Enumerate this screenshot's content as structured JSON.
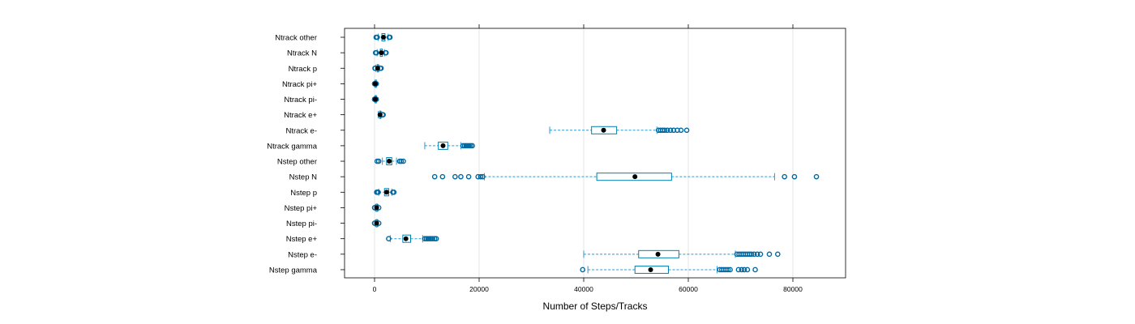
{
  "chart_data": {
    "type": "boxplot",
    "title": "",
    "xlabel": "Number of Steps/Tracks",
    "ylabel": "",
    "xlim": [
      -5500,
      90000
    ],
    "x_ticks": [
      0,
      20000,
      40000,
      60000,
      80000
    ],
    "x_tick_labels": [
      "0",
      "20000",
      "40000",
      "60000",
      "80000"
    ],
    "grid": "vertical",
    "colors": {
      "box": "#0080b0",
      "whisker": "#2a9ad4",
      "outlier": "#0068a0",
      "median": "#000000",
      "grid": "#e6e6e6"
    },
    "categories": [
      "Ntrack other",
      "Ntrack N",
      "Ntrack p",
      "Ntrack pi+",
      "Ntrack pi-",
      "Ntrack e+",
      "Ntrack e-",
      "Ntrack gamma",
      "Nstep other",
      "Nstep N",
      "Nstep p",
      "Nstep pi+",
      "Nstep pi-",
      "Nstep e+",
      "Nstep e-",
      "Nstep gamma"
    ],
    "boxes": [
      {
        "name": "Ntrack other",
        "whisker_low": 700,
        "q1": 1400,
        "median": 1700,
        "q3": 2000,
        "whisker_high": 2600,
        "outliers": [
          300,
          500,
          2800,
          2950
        ]
      },
      {
        "name": "Ntrack N",
        "whisker_low": 500,
        "q1": 1100,
        "median": 1300,
        "q3": 1500,
        "whisker_high": 1900,
        "outliers": [
          200,
          350,
          2100,
          2200
        ]
      },
      {
        "name": "Ntrack p",
        "whisker_low": 250,
        "q1": 500,
        "median": 600,
        "q3": 700,
        "whisker_high": 900,
        "outliers": [
          80,
          120,
          1100,
          1250
        ]
      },
      {
        "name": "Ntrack pi+",
        "whisker_low": 50,
        "q1": 120,
        "median": 150,
        "q3": 180,
        "whisker_high": 260,
        "outliers": [
          0,
          20,
          300,
          330
        ]
      },
      {
        "name": "Ntrack pi-",
        "whisker_low": 50,
        "q1": 120,
        "median": 150,
        "q3": 180,
        "whisker_high": 260,
        "outliers": [
          0,
          20,
          300,
          330
        ]
      },
      {
        "name": "Ntrack e+",
        "whisker_low": 700,
        "q1": 950,
        "median": 1050,
        "q3": 1150,
        "whisker_high": 1350,
        "outliers": [
          1500,
          1650
        ]
      },
      {
        "name": "Ntrack e-",
        "whisker_low": 33500,
        "q1": 41500,
        "median": 43800,
        "q3": 46300,
        "whisker_high": 54000,
        "outliers": [
          54300,
          54700,
          55100,
          55500,
          56000,
          56600,
          57200,
          57900,
          58600,
          59700
        ]
      },
      {
        "name": "Ntrack gamma",
        "whisker_low": 9600,
        "q1": 12200,
        "median": 13100,
        "q3": 14000,
        "whisker_high": 16500,
        "outliers": [
          16900,
          17200,
          17500,
          17800,
          18100,
          18400,
          18700
        ]
      },
      {
        "name": "Nstep other",
        "whisker_low": 1500,
        "q1": 2300,
        "median": 2800,
        "q3": 3300,
        "whisker_high": 4200,
        "outliers": [
          500,
          800,
          4800,
          5100,
          5500
        ]
      },
      {
        "name": "Nstep N",
        "whisker_low": 21000,
        "q1": 42500,
        "median": 49800,
        "q3": 56800,
        "whisker_high": 76500,
        "outliers": [
          11500,
          13000,
          15400,
          16500,
          18000,
          19800,
          20300,
          20700,
          78400,
          80300,
          84500
        ]
      },
      {
        "name": "Nstep p",
        "whisker_low": 800,
        "q1": 1900,
        "median": 2300,
        "q3": 2700,
        "whisker_high": 3300,
        "outliers": [
          400,
          550,
          700,
          3500,
          3700
        ]
      },
      {
        "name": "Nstep pi+",
        "whisker_low": 150,
        "q1": 300,
        "median": 400,
        "q3": 500,
        "whisker_high": 700,
        "outliers": [
          0,
          50,
          800
        ]
      },
      {
        "name": "Nstep pi-",
        "whisker_low": 150,
        "q1": 300,
        "median": 400,
        "q3": 500,
        "whisker_high": 700,
        "outliers": [
          0,
          50,
          800
        ]
      },
      {
        "name": "Nstep e+",
        "whisker_low": 3000,
        "q1": 5400,
        "median": 6000,
        "q3": 6900,
        "whisker_high": 9200,
        "outliers": [
          2700,
          9600,
          9900,
          10200,
          10500,
          10800,
          11100,
          11500,
          11800
        ]
      },
      {
        "name": "Nstep e-",
        "whisker_low": 40000,
        "q1": 50500,
        "median": 54200,
        "q3": 58200,
        "whisker_high": 69000,
        "outliers": [
          69300,
          69700,
          70100,
          70500,
          70900,
          71300,
          71700,
          72100,
          72600,
          73200,
          73800,
          75500,
          77100
        ]
      },
      {
        "name": "Nstep gamma",
        "whisker_low": 40800,
        "q1": 49800,
        "median": 52800,
        "q3": 56200,
        "whisker_high": 65500,
        "outliers": [
          39800,
          66000,
          66400,
          66800,
          67200,
          67600,
          68000,
          69600,
          70200,
          70700,
          71300,
          72800
        ]
      }
    ]
  }
}
